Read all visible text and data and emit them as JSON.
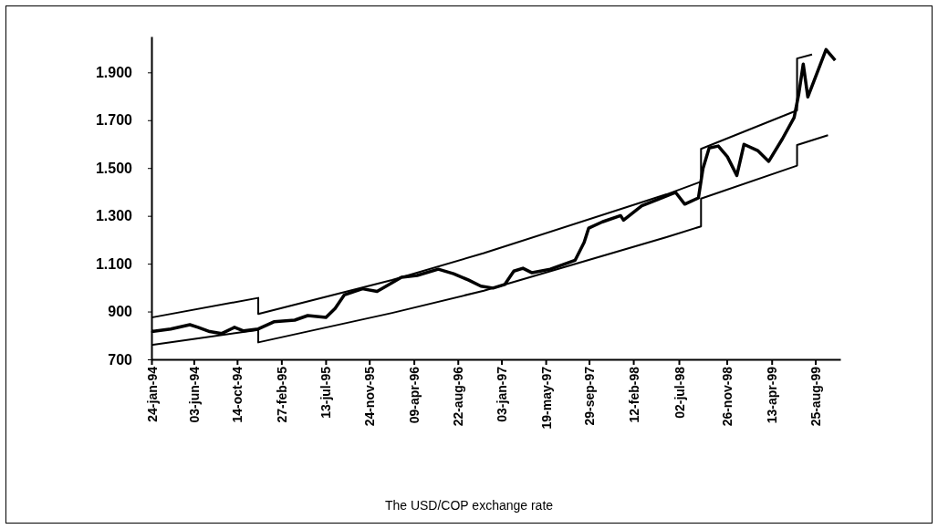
{
  "chart_data": {
    "type": "line",
    "title": "The USD/COP exchange rate",
    "xlim": [
      "1994-01-24",
      "1999-11-10"
    ],
    "xticks": [
      {
        "value": "1994-01-24",
        "label": "24-jan-94"
      },
      {
        "value": "1994-06-03",
        "label": "03-jun-94"
      },
      {
        "value": "1994-10-14",
        "label": "14-oct-94"
      },
      {
        "value": "1995-02-27",
        "label": "27-feb-95"
      },
      {
        "value": "1995-07-13",
        "label": "13-jul-95"
      },
      {
        "value": "1995-11-24",
        "label": "24-nov-95"
      },
      {
        "value": "1996-04-09",
        "label": "09-apr-96"
      },
      {
        "value": "1996-08-22",
        "label": "22-aug-96"
      },
      {
        "value": "1997-01-03",
        "label": "03-jan-97"
      },
      {
        "value": "1997-05-19",
        "label": "19-may-97"
      },
      {
        "value": "1997-09-29",
        "label": "29-sep-97"
      },
      {
        "value": "1998-02-12",
        "label": "12-feb-98"
      },
      {
        "value": "1998-07-02",
        "label": "02-jul-98"
      },
      {
        "value": "1998-11-26",
        "label": "26-nov-98"
      },
      {
        "value": "1999-04-13",
        "label": "13-apr-99"
      },
      {
        "value": "1999-08-25",
        "label": "25-aug-99"
      }
    ],
    "ylim": [
      700,
      2050
    ],
    "yticks": [
      700,
      {
        "value": 900,
        "label": "900"
      },
      {
        "value": 1100,
        "label": "1.100"
      },
      {
        "value": 1300,
        "label": "1.300"
      },
      {
        "value": 1500,
        "label": "1.500"
      },
      {
        "value": 1700,
        "label": "1.700"
      },
      {
        "value": 1900,
        "label": "1.900"
      }
    ],
    "marker": "none",
    "line_style": "solid",
    "series": [
      {
        "color": "#000000",
        "x": [
          "1994-01-24",
          "1994-01-30",
          "1994-03-24",
          "1994-05-22",
          "1994-06-16",
          "1994-07-22",
          "1994-08-28",
          "1994-10-06",
          "1994-11-03",
          "1994-12-18",
          "1995-02-04",
          "1995-04-09",
          "1995-05-19",
          "1995-07-14",
          "1995-08-11",
          "1995-09-08",
          "1995-11-03",
          "1995-12-18",
          "1996-01-15",
          "1996-03-02",
          "1996-04-19",
          "1996-06-23",
          "1996-08-09",
          "1996-09-23",
          "1996-11-01",
          "1996-12-08",
          "1997-01-13",
          "1997-02-10",
          "1997-03-10",
          "1997-04-07",
          "1997-06-02",
          "1997-08-17",
          "1997-09-14",
          "1997-09-28",
          "1997-11-09",
          "1998-01-04",
          "1998-01-13",
          "1998-03-10",
          "1998-04-27",
          "1998-06-22",
          "1998-07-20",
          "1998-08-31",
          "1998-09-14",
          "1998-10-03",
          "1998-10-31",
          "1998-11-28",
          "1998-12-27",
          "1999-01-18",
          "1999-03-01",
          "1999-04-04",
          "1999-05-16",
          "1999-06-21",
          "1999-07-05",
          "1999-07-19",
          "1999-08-02",
          "1999-09-13",
          "1999-09-27",
          "1999-10-25"
        ],
        "values": [
          820,
          817,
          827,
          845,
          834,
          816,
          808,
          834,
          819,
          827,
          857,
          864,
          883,
          875,
          913,
          969,
          995,
          984,
          1006,
          1043,
          1051,
          1077,
          1058,
          1032,
          1006,
          998,
          1013,
          1069,
          1081,
          1062,
          1077,
          1114,
          1189,
          1249,
          1275,
          1301,
          1282,
          1342,
          1368,
          1398,
          1349,
          1375,
          1498,
          1584,
          1592,
          1547,
          1469,
          1599,
          1573,
          1528,
          1622,
          1711,
          1808,
          1935,
          1797,
          1946,
          1995,
          1950
        ]
      },
      {
        "color": "#000000",
        "x": [
          "1994-01-24",
          "1994-12-18",
          "1994-12-18",
          "1996-02-02",
          "1996-11-10",
          "1998-05-25",
          "1998-09-08",
          "1998-09-08",
          "1999-06-30",
          "1999-06-30",
          "1999-08-15"
        ],
        "values": [
          875,
          957,
          890,
          1032,
          1144,
          1390,
          1443,
          1580,
          1741,
          1958,
          1975
        ]
      },
      {
        "color": "#000000",
        "x": [
          "1994-01-24",
          "1994-12-18",
          "1994-12-18",
          "1996-02-02",
          "1996-11-10",
          "1998-05-25",
          "1998-09-08",
          "1998-09-08",
          "1999-06-30",
          "1999-06-30",
          "1999-10-03"
        ],
        "values": [
          760,
          823,
          771,
          894,
          987,
          1211,
          1256,
          1372,
          1510,
          1596,
          1637
        ]
      }
    ]
  }
}
